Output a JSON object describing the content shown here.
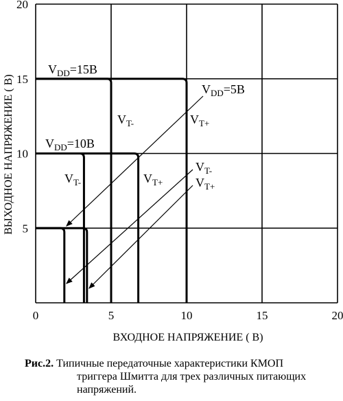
{
  "chart_data": {
    "type": "line",
    "xlabel": "ВХОДНОЕ НАПРЯЖЕНИЕ ( В)",
    "ylabel": "ВЫХОДНОЕ НАПРЯЖЕНИЕ ( В)",
    "xlim": [
      0,
      20
    ],
    "ylim": [
      0,
      20
    ],
    "x_ticks": [
      "0",
      "5",
      "10",
      "15",
      "20"
    ],
    "y_ticks": [
      "5",
      "10",
      "15",
      "20"
    ],
    "grid": true,
    "series": [
      {
        "name": "VDD=15В",
        "supply": 15,
        "vt_minus": 5,
        "vt_plus": 10
      },
      {
        "name": "VDD=10В",
        "supply": 10,
        "vt_minus": 3.2,
        "vt_plus": 6.8
      },
      {
        "name": "VDD=5В",
        "supply": 5,
        "vt_minus": 1.9,
        "vt_plus": 3.4
      }
    ],
    "annotations": {
      "vdd15": {
        "main": "V",
        "sub": "DD",
        "rest": "=15В"
      },
      "vdd10": {
        "main": "V",
        "sub": "DD",
        "rest": "=10В"
      },
      "vdd5": {
        "main": "V",
        "sub": "DD",
        "rest": "=5В"
      },
      "vt_minus": {
        "main": "V",
        "sub": "T-"
      },
      "vt_plus": {
        "main": "V",
        "sub": "T+"
      }
    }
  },
  "caption": {
    "label": "Рис.2.",
    "line1": "Типичные передаточные характеристики КМОП",
    "line2": "триггера Шмитта для трех различных питающих",
    "line3": "напряжений."
  }
}
